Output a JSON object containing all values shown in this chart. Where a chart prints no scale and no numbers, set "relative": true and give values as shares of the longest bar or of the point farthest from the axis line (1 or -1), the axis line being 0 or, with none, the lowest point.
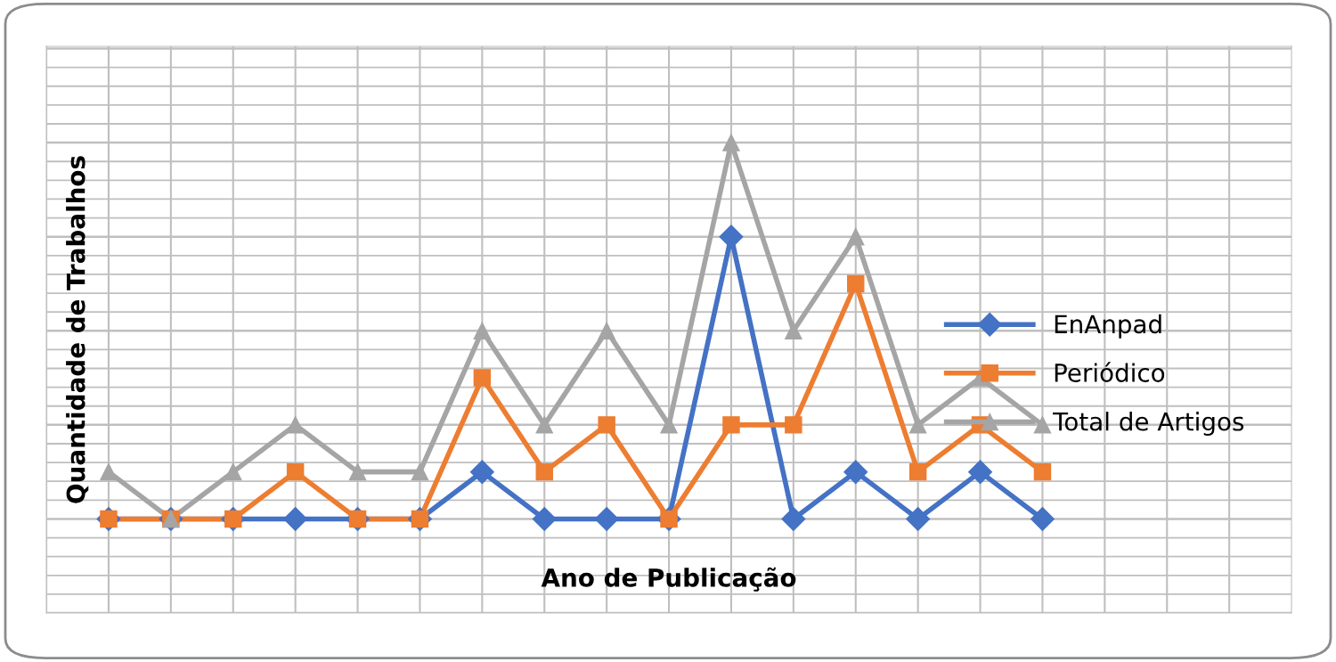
{
  "chart_data": {
    "type": "line",
    "relative": true,
    "xlabel": "Ano de Publicação",
    "ylabel": "Quantidade de Trabalhos",
    "categories": [
      null,
      null,
      null,
      null,
      null,
      null,
      null,
      null,
      null,
      null,
      null,
      null,
      null,
      null,
      null,
      null
    ],
    "series": [
      {
        "name": "EnAnpad",
        "color": "#4472c4",
        "marker": "diamond",
        "values": [
          0,
          0,
          0,
          0,
          0,
          0,
          0.125,
          0,
          0,
          0,
          0.75,
          0,
          0.125,
          0,
          0.125,
          0
        ]
      },
      {
        "name": "Periódico",
        "color": "#ed7d31",
        "marker": "square",
        "values": [
          0,
          0,
          0,
          0.125,
          0,
          0,
          0.375,
          0.125,
          0.25,
          0,
          0.25,
          0.25,
          0.625,
          0.125,
          0.25,
          0.125
        ]
      },
      {
        "name": "Total de Artigos",
        "color": "#a5a5a5",
        "marker": "triangle",
        "values": [
          0.125,
          0,
          0.125,
          0.25,
          0.125,
          0.125,
          0.5,
          0.25,
          0.5,
          0.25,
          1,
          0.5,
          0.75,
          0.25,
          0.375,
          0.25
        ]
      }
    ],
    "grid": true,
    "legend": "right",
    "line_style": "solid"
  }
}
